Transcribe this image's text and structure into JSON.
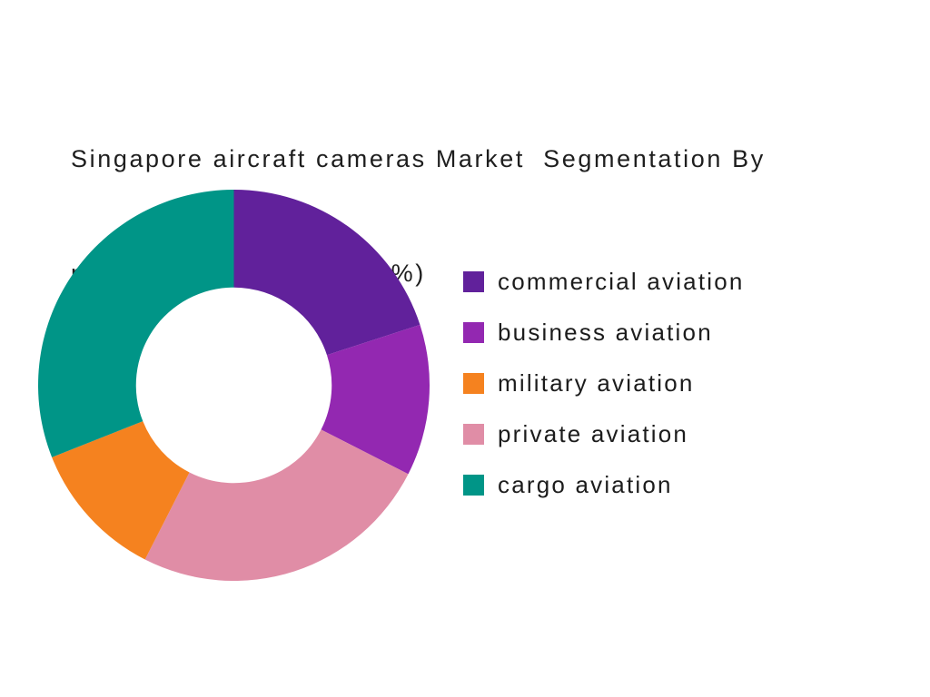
{
  "page": {
    "background_color": "#ffffff",
    "text_color": "#1e1e1e"
  },
  "title": {
    "line1": "Singapore aircraft cameras Market  Segmentation By",
    "line2": "platform Type ( in value %)"
  },
  "chart_data": {
    "type": "pie",
    "subtype": "donut",
    "title": "Singapore aircraft cameras Market  Segmentation By platform Type ( in value %)",
    "unit": "value %",
    "start_angle_deg": 0,
    "direction": "clockwise",
    "donut_hole_ratio": 0.5,
    "slices": [
      {
        "label": "commercial aviation",
        "value": 20,
        "color": "#61219B"
      },
      {
        "label": "business aviation",
        "value": 12.5,
        "color": "#9328B1"
      },
      {
        "label": "private aviation",
        "value": 25,
        "color": "#E08DA6"
      },
      {
        "label": "military aviation",
        "value": 11.5,
        "color": "#F5821F"
      },
      {
        "label": "cargo aviation",
        "value": 31,
        "color": "#009587"
      }
    ],
    "legend": {
      "position": "right",
      "order": [
        "commercial aviation",
        "business aviation",
        "military aviation",
        "private aviation",
        "cargo aviation"
      ]
    }
  }
}
